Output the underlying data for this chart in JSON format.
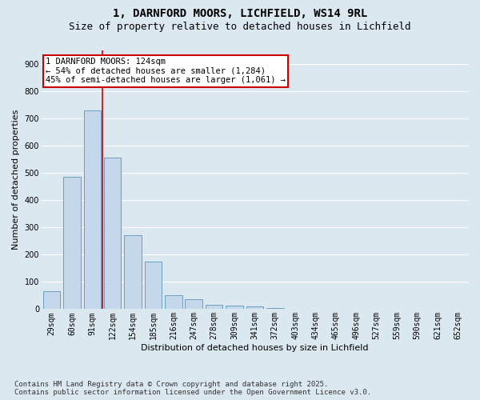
{
  "title": "1, DARNFORD MOORS, LICHFIELD, WS14 9RL",
  "subtitle": "Size of property relative to detached houses in Lichfield",
  "xlabel": "Distribution of detached houses by size in Lichfield",
  "ylabel": "Number of detached properties",
  "categories": [
    "29sqm",
    "60sqm",
    "91sqm",
    "122sqm",
    "154sqm",
    "185sqm",
    "216sqm",
    "247sqm",
    "278sqm",
    "309sqm",
    "341sqm",
    "372sqm",
    "403sqm",
    "434sqm",
    "465sqm",
    "496sqm",
    "527sqm",
    "559sqm",
    "590sqm",
    "621sqm",
    "652sqm"
  ],
  "values": [
    65,
    485,
    730,
    555,
    270,
    175,
    50,
    35,
    15,
    12,
    10,
    3,
    0,
    0,
    0,
    0,
    0,
    0,
    0,
    0,
    0
  ],
  "bar_color": "#c5d8eb",
  "bar_edge_color": "#6a9ec0",
  "background_color": "#dce8f0",
  "grid_color": "#ffffff",
  "annotation_box_color": "#ffffff",
  "annotation_border_color": "#cc0000",
  "vline_color": "#cc0000",
  "vline_x_index": 3,
  "annotation_title": "1 DARNFORD MOORS: 124sqm",
  "annotation_line1": "← 54% of detached houses are smaller (1,284)",
  "annotation_line2": "45% of semi-detached houses are larger (1,061) →",
  "ylim": [
    0,
    950
  ],
  "yticks": [
    0,
    100,
    200,
    300,
    400,
    500,
    600,
    700,
    800,
    900
  ],
  "footer": "Contains HM Land Registry data © Crown copyright and database right 2025.\nContains public sector information licensed under the Open Government Licence v3.0.",
  "title_fontsize": 10,
  "subtitle_fontsize": 9,
  "axis_label_fontsize": 8,
  "tick_fontsize": 7,
  "annotation_fontsize": 7.5,
  "footer_fontsize": 6.5
}
